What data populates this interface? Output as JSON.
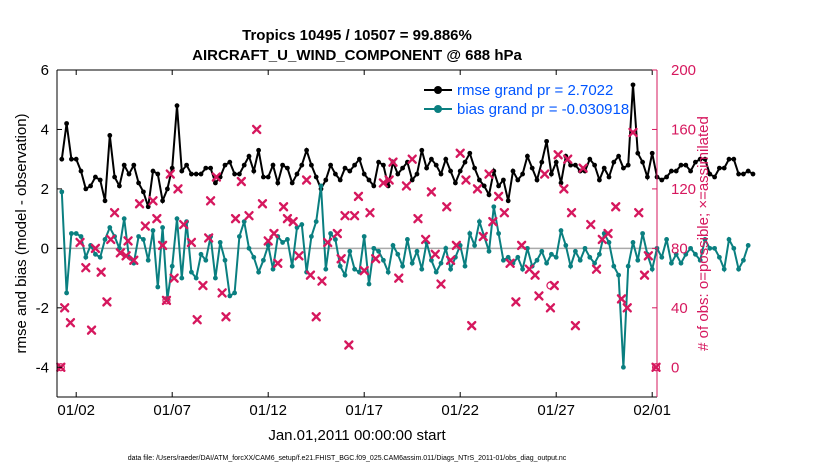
{
  "colors": {
    "rmse": "#000000",
    "bias": "#0a7f80",
    "obs": "#d6185e",
    "legend_text": "#0055ff",
    "zero_line": "#aaaaaa"
  },
  "chart_data": {
    "type": "line",
    "title_lines": [
      "Tropics 10495 / 10507 = 99.886%",
      "AIRCRAFT_U_WIND_COMPONENT @ 688 hPa"
    ],
    "xlabel": "Jan.01,2011 00:00:00 start",
    "ylabel_left": "rmse and bias (model - observation)",
    "ylabel_right": "# of obs: o=possible; ×=assimilated",
    "x_tick_labels": [
      "01/02",
      "01/07",
      "01/12",
      "01/17",
      "01/22",
      "01/27",
      "02/01"
    ],
    "x_ticks": [
      1,
      6,
      11,
      16,
      21,
      26,
      31
    ],
    "xlim": [
      0.0,
      31.25
    ],
    "y_left_ticks": [
      "-4",
      "-2",
      "0",
      "2",
      "4",
      "6"
    ],
    "y_left_tick_values": [
      -4,
      -2,
      0,
      2,
      4,
      6
    ],
    "ylim_left": [
      -5,
      6
    ],
    "y_right_ticks": [
      "0",
      "40",
      "80",
      "120",
      "160",
      "200"
    ],
    "y_right_tick_values": [
      0,
      40,
      80,
      120,
      160,
      200
    ],
    "ylim_right": [
      -20,
      200
    ],
    "legend": {
      "rmse_label": "rmse grand pr = 2.7022",
      "bias_label": "bias grand pr = -0.030918"
    },
    "footer": "data file: /Users/raeder/DAI/ATM_forcXX/CAM6_setup/f.e21.FHIST_BGC.f09_025.CAM6assim.011/Diags_NTrS_2011-01/obs_diag_output.nc",
    "x_start": 0.25,
    "x_step": 0.25,
    "rmse": [
      3.0,
      4.2,
      3.0,
      3.0,
      2.6,
      2.0,
      2.1,
      2.4,
      2.3,
      1.6,
      3.8,
      2.4,
      2.1,
      2.8,
      2.5,
      2.8,
      2.2,
      1.9,
      1.4,
      2.6,
      2.5,
      1.6,
      2.0,
      2.7,
      4.8,
      2.6,
      2.8,
      2.5,
      2.5,
      2.5,
      2.7,
      2.7,
      2.2,
      2.4,
      2.8,
      2.9,
      2.5,
      2.5,
      2.8,
      3.1,
      2.6,
      3.3,
      2.4,
      2.4,
      2.8,
      2.2,
      2.8,
      2.7,
      2.2,
      2.5,
      2.8,
      3.3,
      2.8,
      2.4,
      2.0,
      2.3,
      2.8,
      2.5,
      2.3,
      2.7,
      2.6,
      2.8,
      3.0,
      2.5,
      2.3,
      2.1,
      2.9,
      2.8,
      2.1,
      2.9,
      2.5,
      2.7,
      2.9,
      2.3,
      2.5,
      3.3,
      2.7,
      3.0,
      2.8,
      2.5,
      3.0,
      2.6,
      2.2,
      2.6,
      2.9,
      3.2,
      2.7,
      2.3,
      2.1,
      1.8,
      2.6,
      2.1,
      2.3,
      1.6,
      2.6,
      2.3,
      2.5,
      3.1,
      2.7,
      2.3,
      2.9,
      3.6,
      2.5,
      2.9,
      2.2,
      3.1,
      2.8,
      2.8,
      2.6,
      2.6,
      3.0,
      2.8,
      2.3,
      2.7,
      2.4,
      2.9,
      3.1,
      2.7,
      2.8,
      5.5,
      3.2,
      2.9,
      2.4,
      3.2,
      2.4,
      2.3,
      2.4,
      2.6,
      2.6,
      2.8,
      2.8,
      2.6,
      2.9,
      3.0,
      3.0,
      2.5,
      2.4,
      2.7,
      2.7,
      3.0,
      3.0,
      2.5,
      2.5,
      2.6,
      2.5
    ],
    "bias": [
      1.9,
      -1.5,
      0.5,
      0.5,
      0.4,
      -0.3,
      0.1,
      -0.2,
      -0.3,
      0.3,
      0.7,
      0.4,
      0.0,
      1.0,
      -0.3,
      -0.5,
      0.4,
      0.3,
      -0.4,
      0.6,
      -1.3,
      0.7,
      -1.7,
      -0.6,
      1.0,
      -1.0,
      0.9,
      -0.8,
      -1.0,
      -0.2,
      -0.4,
      0.4,
      -1.0,
      0.2,
      -0.4,
      -1.6,
      -1.5,
      0.4,
      0.9,
      0.0,
      -0.3,
      -0.8,
      -0.4,
      0.1,
      -0.7,
      0.4,
      0.2,
      0.3,
      -0.6,
      0.7,
      0.8,
      -0.8,
      0.4,
      0.9,
      2.1,
      -0.7,
      0.5,
      0.3,
      -0.6,
      -0.9,
      -0.1,
      -0.7,
      -0.8,
      0.4,
      -1.2,
      0.0,
      -0.1,
      -0.4,
      -0.8,
      0.1,
      -0.2,
      -0.6,
      0.3,
      -0.5,
      -0.1,
      -0.7,
      0.2,
      -0.4,
      -0.8,
      -0.5,
      0.0,
      -0.7,
      -0.3,
      0.1,
      -0.6,
      0.5,
      0.1,
      0.9,
      0.4,
      -0.1,
      1.4,
      0.5,
      -0.4,
      -0.3,
      -0.5,
      -0.3,
      -0.7,
      0.0,
      -0.6,
      -0.4,
      -0.1,
      -0.5,
      -0.2,
      -0.3,
      0.6,
      0.1,
      -0.6,
      -0.1,
      -0.4,
      0.0,
      -0.3,
      -0.5,
      -0.2,
      0.5,
      0.2,
      -0.6,
      -0.9,
      -4.0,
      -0.6,
      0.2,
      -0.4,
      0.5,
      -0.2,
      -0.7,
      0.0,
      -0.3,
      0.3,
      -0.5,
      -0.2,
      -0.5,
      -0.2,
      0.0,
      -0.2,
      -0.4,
      0.3,
      0.0,
      0.0,
      -0.3,
      -0.7,
      0.3,
      0.0,
      -0.7,
      -0.4,
      0.1
    ],
    "obs_assimilated": [
      [
        0.2,
        0
      ],
      [
        0.4,
        40
      ],
      [
        0.7,
        30
      ],
      [
        1.2,
        84
      ],
      [
        1.5,
        67
      ],
      [
        1.8,
        25
      ],
      [
        2.0,
        80
      ],
      [
        2.3,
        64
      ],
      [
        2.6,
        44
      ],
      [
        2.8,
        86
      ],
      [
        3.0,
        104
      ],
      [
        3.3,
        77
      ],
      [
        3.6,
        75
      ],
      [
        3.7,
        85
      ],
      [
        4.0,
        72
      ],
      [
        4.3,
        110
      ],
      [
        4.6,
        95
      ],
      [
        5.0,
        112
      ],
      [
        5.2,
        100
      ],
      [
        5.5,
        82
      ],
      [
        5.7,
        45
      ],
      [
        5.9,
        130
      ],
      [
        6.1,
        60
      ],
      [
        6.3,
        120
      ],
      [
        6.6,
        96
      ],
      [
        7.0,
        84
      ],
      [
        7.3,
        32
      ],
      [
        7.6,
        55
      ],
      [
        7.9,
        87
      ],
      [
        8.0,
        112
      ],
      [
        8.3,
        128
      ],
      [
        8.6,
        50
      ],
      [
        8.8,
        34
      ],
      [
        9.3,
        100
      ],
      [
        9.6,
        125
      ],
      [
        10.0,
        102
      ],
      [
        10.4,
        160
      ],
      [
        10.7,
        110
      ],
      [
        11.0,
        85
      ],
      [
        11.3,
        90
      ],
      [
        11.5,
        70
      ],
      [
        11.8,
        108
      ],
      [
        12.0,
        100
      ],
      [
        12.3,
        98
      ],
      [
        12.6,
        75
      ],
      [
        13.0,
        126
      ],
      [
        13.2,
        62
      ],
      [
        13.5,
        34
      ],
      [
        13.8,
        58
      ],
      [
        14.1,
        84
      ],
      [
        14.6,
        90
      ],
      [
        14.8,
        73
      ],
      [
        15.0,
        102
      ],
      [
        15.2,
        15
      ],
      [
        15.5,
        102
      ],
      [
        15.7,
        115
      ],
      [
        16.0,
        65
      ],
      [
        16.3,
        104
      ],
      [
        16.6,
        73
      ],
      [
        17.0,
        124
      ],
      [
        17.3,
        126
      ],
      [
        17.5,
        138
      ],
      [
        17.8,
        60
      ],
      [
        18.2,
        122
      ],
      [
        18.5,
        140
      ],
      [
        18.8,
        100
      ],
      [
        19.2,
        86
      ],
      [
        19.5,
        118
      ],
      [
        19.7,
        76
      ],
      [
        20.0,
        56
      ],
      [
        20.3,
        108
      ],
      [
        20.5,
        72
      ],
      [
        20.8,
        82
      ],
      [
        21.0,
        144
      ],
      [
        21.3,
        126
      ],
      [
        21.6,
        28
      ],
      [
        21.9,
        120
      ],
      [
        22.2,
        88
      ],
      [
        22.5,
        130
      ],
      [
        22.7,
        98
      ],
      [
        23.0,
        115
      ],
      [
        23.3,
        104
      ],
      [
        23.6,
        70
      ],
      [
        23.9,
        44
      ],
      [
        24.2,
        82
      ],
      [
        24.6,
        66
      ],
      [
        24.9,
        62
      ],
      [
        25.1,
        48
      ],
      [
        25.4,
        130
      ],
      [
        25.7,
        40
      ],
      [
        25.9,
        55
      ],
      [
        26.1,
        143
      ],
      [
        26.4,
        120
      ],
      [
        26.6,
        140
      ],
      [
        26.8,
        104
      ],
      [
        27.0,
        28
      ],
      [
        27.4,
        134
      ],
      [
        27.8,
        96
      ],
      [
        28.1,
        66
      ],
      [
        28.4,
        86
      ],
      [
        28.7,
        90
      ],
      [
        29.1,
        108
      ],
      [
        29.4,
        46
      ],
      [
        29.7,
        40
      ],
      [
        30.0,
        158
      ],
      [
        30.3,
        104
      ],
      [
        30.6,
        62
      ],
      [
        30.8,
        75
      ],
      [
        31.2,
        0
      ]
    ],
    "obs_possible": [
      [
        0.2,
        0
      ],
      [
        5.7,
        45
      ],
      [
        25.7,
        55
      ],
      [
        31.2,
        0
      ]
    ]
  }
}
